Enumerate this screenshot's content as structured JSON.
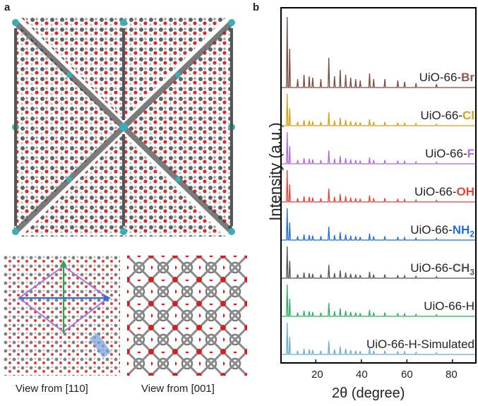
{
  "panels": {
    "a": {
      "label": "a",
      "caption_left": "View from [110]",
      "caption_right": "View from [001]"
    },
    "b": {
      "label": "b"
    }
  },
  "chart_data": {
    "type": "line",
    "title": "",
    "xlabel": "2θ (degree)",
    "ylabel": "Intensity (a.u.)",
    "xlim": [
      5,
      90
    ],
    "xticks": [
      20,
      40,
      60,
      80
    ],
    "series": [
      {
        "name": "UiO-66-Br",
        "prefix": "UiO-66-",
        "suffix": "Br",
        "sub": "",
        "color": "#7a4a3e",
        "suffix_color": "#8a5a50"
      },
      {
        "name": "UiO-66-Cl",
        "prefix": "UiO-66-",
        "suffix": "Cl",
        "sub": "",
        "color": "#d4a017",
        "suffix_color": "#d4a017"
      },
      {
        "name": "UiO-66-F",
        "prefix": "UiO-66-",
        "suffix": "F",
        "sub": "",
        "color": "#b06ad8",
        "suffix_color": "#b06ad8"
      },
      {
        "name": "UiO-66-OH",
        "prefix": "UiO-66-",
        "suffix": "OH",
        "sub": "",
        "color": "#e8433a",
        "suffix_color": "#e8433a"
      },
      {
        "name": "UiO-66-NH2",
        "prefix": "UiO-66-",
        "suffix": "NH",
        "sub": "2",
        "color": "#1f6fd6",
        "suffix_color": "#1f6fd6"
      },
      {
        "name": "UiO-66-CH3",
        "prefix": "UiO-66-",
        "suffix": "CH",
        "sub": "3",
        "color": "#555555",
        "suffix_color": "#555555"
      },
      {
        "name": "UiO-66-H",
        "prefix": "UiO-66-H",
        "suffix": "",
        "sub": "",
        "color": "#2fae62",
        "suffix_color": "#222222"
      },
      {
        "name": "UiO-66-H-Simulated",
        "prefix": "UiO-66-H-Simulated",
        "suffix": "",
        "sub": "",
        "color": "#6aaed0",
        "suffix_color": "#222222"
      }
    ],
    "peaks_2theta": [
      7.4,
      8.5,
      12.0,
      14.8,
      17.1,
      18.6,
      22.2,
      25.7,
      28.2,
      30.7,
      33.1,
      35.3,
      37.5,
      39.5,
      43.6,
      45.4,
      50.3,
      56.0,
      59.0,
      64.0,
      73.0
    ]
  }
}
